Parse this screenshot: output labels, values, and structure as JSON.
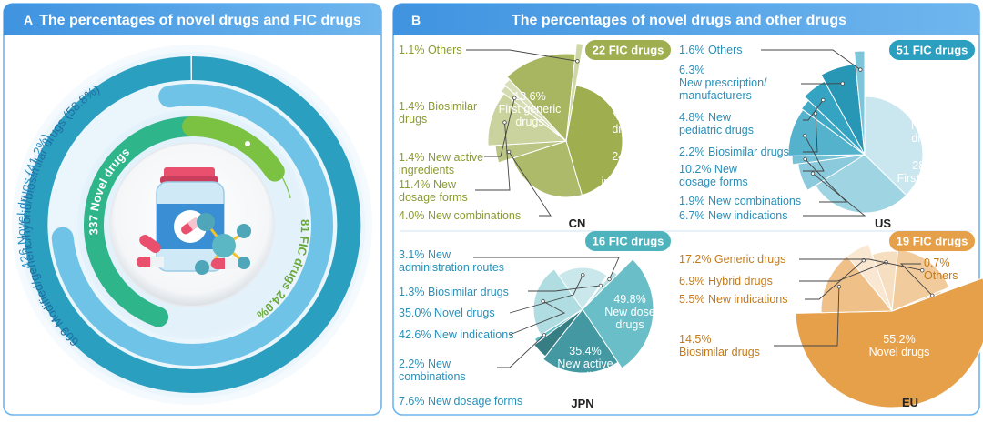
{
  "panels": {
    "a": {
      "letter": "A",
      "title": "The percentages of novel drugs and FIC drugs"
    },
    "b": {
      "letter": "B",
      "title": "The percentages of novel drugs and other drugs"
    }
  },
  "colors": {
    "header_blue": "#4a9fe6",
    "cn": "#9fae4f",
    "us": "#2a9fc0",
    "jpn": "#4fb3bd",
    "eu": "#e6a04a",
    "ring_outer": "#2a9fc0",
    "ring_mid": "#6ec3e6",
    "ring_inner": "#2fb58a",
    "ring_fic": "#7bc142"
  },
  "chart_data": [
    {
      "type": "radial-bar",
      "id": "panel-a",
      "title": "The percentages of novel drugs and FIC drugs",
      "series": [
        {
          "name": "Modified/generic/hybrid/biosimilar drugs",
          "count": 609,
          "percent": 58.8,
          "label": "609 Modified/generic/hybrid/biosimilar drugs (58.8%)"
        },
        {
          "name": "Novel drugs",
          "count": 426,
          "percent": 41.2,
          "label": "426 Novel drugs (41.2%)"
        },
        {
          "name": "Novel drugs (FIC base)",
          "count": 337,
          "label": "337 Novel drugs"
        },
        {
          "name": "FIC drugs",
          "count": 81,
          "percent": 24.0,
          "label": "81 FIC drugs 24.0%"
        }
      ]
    },
    {
      "type": "pie",
      "id": "cn",
      "region": "CN",
      "badge": "22 FIC drugs",
      "slices": [
        {
          "name": "Novel drugs",
          "value": 42.9,
          "label": "42.9% Novel drugs",
          "inside": [
            "42.9%",
            "Novel",
            "drugs"
          ]
        },
        {
          "name": "New indications",
          "value": 24.7,
          "label": "24.7% New indications",
          "inside": [
            "24.7%",
            "New",
            "indications"
          ]
        },
        {
          "name": "New combinations",
          "value": 4.0,
          "label": "4.0% New combinations"
        },
        {
          "name": "New dosage forms",
          "value": 11.4,
          "label": "11.4% New dosage forms",
          "outside": [
            "11.4% New",
            "dosage forms"
          ]
        },
        {
          "name": "New active ingredients",
          "value": 1.4,
          "label": "1.4% New active ingredients",
          "outside": [
            "1.4% New active",
            "ingredients"
          ]
        },
        {
          "name": "Biosimilar drugs",
          "value": 1.4,
          "label": "1.4% Biosimilar drugs",
          "outside": [
            "1.4% Biosimilar",
            "drugs"
          ]
        },
        {
          "name": "First generic drugs",
          "value": 13.6,
          "label": "13.6% First generic drugs",
          "inside": [
            "13.6%",
            "First generic",
            "drugs"
          ]
        },
        {
          "name": "Others",
          "value": 1.1,
          "label": "1.1% Others"
        }
      ]
    },
    {
      "type": "pie",
      "id": "us",
      "region": "US",
      "badge": "51 FIC drugs",
      "slices": [
        {
          "name": "Novel drugs",
          "value": 37.1,
          "label": "37.1% Novel drugs",
          "inside": [
            "37.1%",
            "Novel",
            "drugs"
          ]
        },
        {
          "name": "First generic drugs",
          "value": 28.6,
          "label": "28.6% First generic drugs",
          "inside": [
            "28.6%",
            "First generic",
            "drugs"
          ]
        },
        {
          "name": "New indications",
          "value": 6.7,
          "label": "6.7% New indications"
        },
        {
          "name": "New combinations",
          "value": 1.9,
          "label": "1.9% New combinations"
        },
        {
          "name": "New dosage forms",
          "value": 10.2,
          "label": "10.2% New dosage forms",
          "outside": [
            "10.2% New",
            "dosage forms"
          ]
        },
        {
          "name": "Biosimilar drugs",
          "value": 2.2,
          "label": "2.2% Biosimilar drugs"
        },
        {
          "name": "New pediatric drugs",
          "value": 4.8,
          "label": "4.8% New pediatric drugs",
          "outside": [
            "4.8% New",
            "pediatric drugs"
          ]
        },
        {
          "name": "New prescription/manufacturers",
          "value": 6.3,
          "label": "6.3% New prescription/manufacturers",
          "outside": [
            "6.3%",
            "New prescription/",
            "manufacturers"
          ]
        },
        {
          "name": "Others",
          "value": 1.6,
          "label": "1.6% Others"
        }
      ]
    },
    {
      "type": "pie",
      "id": "jpn",
      "region": "JPN",
      "badge": "16 FIC drugs",
      "slices": [
        {
          "name": "New dose drugs",
          "value": 49.8,
          "label": "49.8% New dose drugs",
          "inside": [
            "49.8%",
            "New dose",
            "drugs"
          ]
        },
        {
          "name": "New active ingredients",
          "value": 35.4,
          "label": "35.4% New active ingredients",
          "inside": [
            "35.4%",
            "New active",
            "ingredients"
          ]
        },
        {
          "name": "New dosage forms",
          "value": 7.6,
          "label": "7.6% New dosage forms"
        },
        {
          "name": "New combinations",
          "value": 2.2,
          "label": "2.2% New combinations",
          "outside": [
            "2.2% New",
            "combinations"
          ]
        },
        {
          "name": "New indications",
          "value": 42.6,
          "label": "42.6% New indications"
        },
        {
          "name": "Novel drugs",
          "value": 35.0,
          "label": "35.0% Novel drugs"
        },
        {
          "name": "Biosimilar drugs",
          "value": 1.3,
          "label": "1.3% Biosimilar drugs"
        },
        {
          "name": "New administration routes",
          "value": 3.1,
          "label": "3.1% New administration routes",
          "outside": [
            "3.1% New",
            "administration routes"
          ]
        }
      ]
    },
    {
      "type": "pie",
      "id": "eu",
      "region": "EU",
      "badge": "19 FIC drugs",
      "slices": [
        {
          "name": "Novel drugs",
          "value": 55.2,
          "label": "55.2% Novel drugs",
          "inside": [
            "55.2%",
            "Novel drugs"
          ]
        },
        {
          "name": "Biosimilar drugs",
          "value": 14.5,
          "label": "14.5% Biosimilar drugs",
          "outside": [
            "14.5%",
            "Biosimilar drugs"
          ]
        },
        {
          "name": "New indications",
          "value": 5.5,
          "label": "5.5% New indications"
        },
        {
          "name": "Hybrid drugs",
          "value": 6.9,
          "label": "6.9% Hybrid drugs"
        },
        {
          "name": "Generic drugs",
          "value": 17.2,
          "label": "17.2% Generic drugs"
        },
        {
          "name": "Others",
          "value": 0.7,
          "label": "0.7% Others",
          "outside": [
            "0.7%",
            "Others"
          ]
        }
      ]
    }
  ]
}
